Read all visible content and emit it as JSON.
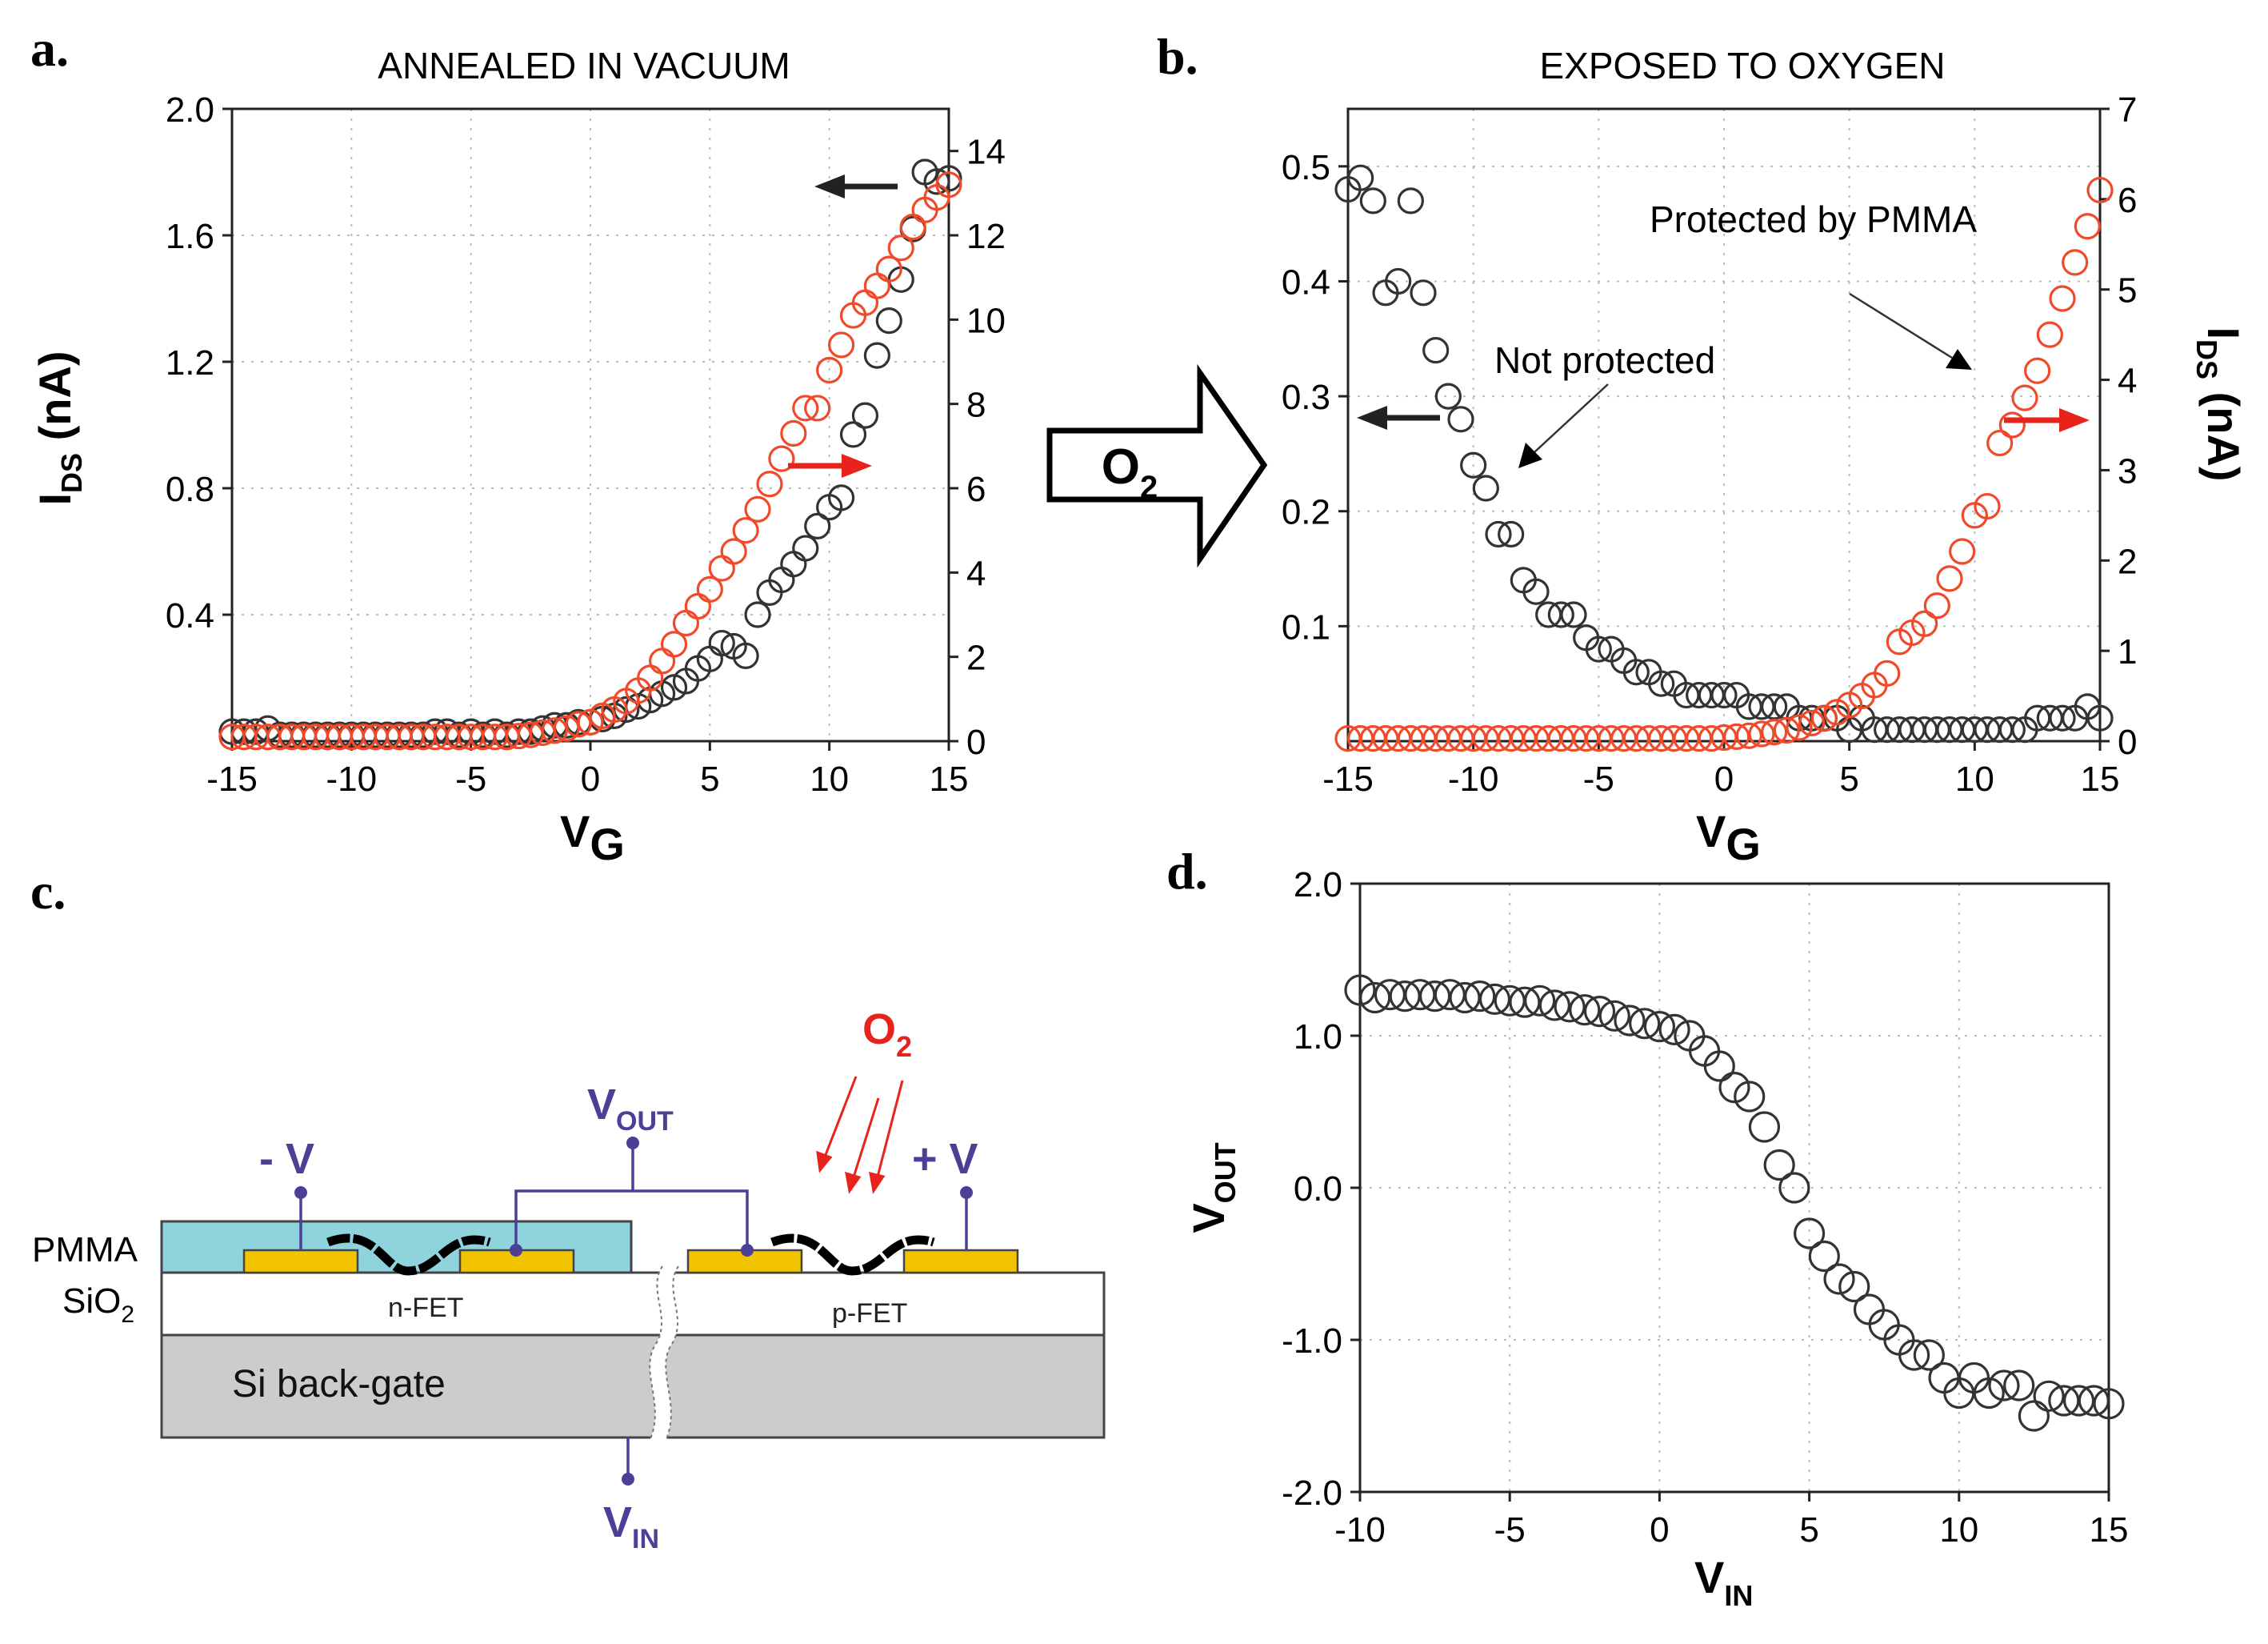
{
  "panels": {
    "a": {
      "label": "a.",
      "title": "ANNEALED IN VACUUM"
    },
    "b": {
      "label": "b.",
      "title": "EXPOSED TO OXYGEN"
    },
    "c": {
      "label": "c."
    },
    "d": {
      "label": "d."
    }
  },
  "arrow_label": {
    "main": "O",
    "sub": "2"
  },
  "chart_data": [
    {
      "panel": "a",
      "type": "scatter",
      "title": "ANNEALED IN VACUUM",
      "xlabel": {
        "main": "V",
        "sub": "G"
      },
      "ylabel": {
        "main": "I",
        "sub": "DS",
        "unit": " (nA)"
      },
      "xlim": [
        -15,
        15
      ],
      "ylim": [
        0,
        2.0
      ],
      "y2lim": [
        0,
        15
      ],
      "xticks": [
        -15,
        -10,
        -5,
        0,
        5,
        10,
        15
      ],
      "xtick_labels": [
        "-15",
        "-10",
        "-5",
        "0",
        "5",
        "10",
        "15"
      ],
      "yticks": [
        0.4,
        0.8,
        1.2,
        1.6,
        2.0
      ],
      "ytick_labels": [
        "0.4",
        "0.8",
        "1.2",
        "1.6",
        "2.0"
      ],
      "y2ticks": [
        0,
        2,
        4,
        6,
        8,
        10,
        12,
        14
      ],
      "y2tick_labels": [
        "0",
        "2",
        "4",
        "6",
        "8",
        "10",
        "12",
        "14"
      ],
      "grid": true,
      "series": [
        {
          "axis": "left",
          "color": "#333333",
          "x": [
            -15,
            -14.5,
            -14,
            -13.5,
            -13,
            -12.5,
            -12,
            -11.5,
            -11,
            -10.5,
            -10,
            -9.5,
            -9,
            -8.5,
            -8,
            -7.5,
            -7,
            -6.5,
            -6,
            -5.5,
            -5,
            -4.5,
            -4,
            -3.5,
            -3,
            -2.5,
            -2,
            -1.5,
            -1,
            -0.5,
            0,
            0.5,
            1,
            1.5,
            2,
            2.5,
            3,
            3.5,
            4,
            4.5,
            5,
            5.5,
            6,
            6.5,
            7,
            7.5,
            8,
            8.5,
            9,
            9.5,
            10,
            10.5,
            11,
            11.5,
            12,
            12.5,
            13,
            13.5,
            14,
            14.5,
            15
          ],
          "y": [
            0.03,
            0.03,
            0.03,
            0.04,
            0.02,
            0.02,
            0.02,
            0.02,
            0.02,
            0.02,
            0.02,
            0.02,
            0.02,
            0.02,
            0.02,
            0.02,
            0.02,
            0.03,
            0.03,
            0.02,
            0.03,
            0.02,
            0.03,
            0.02,
            0.03,
            0.03,
            0.04,
            0.05,
            0.05,
            0.06,
            0.06,
            0.07,
            0.08,
            0.1,
            0.11,
            0.13,
            0.15,
            0.17,
            0.19,
            0.23,
            0.26,
            0.31,
            0.3,
            0.27,
            0.4,
            0.47,
            0.51,
            0.56,
            0.61,
            0.68,
            0.74,
            0.77,
            0.97,
            1.03,
            1.22,
            1.33,
            1.46,
            1.62,
            1.8,
            1.77,
            1.78
          ]
        },
        {
          "axis": "right",
          "color": "#f04a2a",
          "x": [
            -15,
            -14.5,
            -14,
            -13.5,
            -13,
            -12.5,
            -12,
            -11.5,
            -11,
            -10.5,
            -10,
            -9.5,
            -9,
            -8.5,
            -8,
            -7.5,
            -7,
            -6.5,
            -6,
            -5.5,
            -5,
            -4.5,
            -4,
            -3.5,
            -3,
            -2.5,
            -2,
            -1.5,
            -1,
            -0.5,
            0,
            0.5,
            1,
            1.5,
            2,
            2.5,
            3,
            3.5,
            4,
            4.5,
            5,
            5.5,
            6,
            6.5,
            7,
            7.5,
            8,
            8.5,
            9,
            9.5,
            10,
            10.5,
            11,
            11.5,
            12,
            12.5,
            13,
            13.5,
            14,
            14.5,
            15
          ],
          "y": [
            0.1,
            0.1,
            0.1,
            0.1,
            0.1,
            0.1,
            0.1,
            0.1,
            0.1,
            0.1,
            0.1,
            0.1,
            0.1,
            0.1,
            0.1,
            0.1,
            0.1,
            0.1,
            0.1,
            0.1,
            0.1,
            0.1,
            0.1,
            0.1,
            0.12,
            0.15,
            0.2,
            0.25,
            0.3,
            0.4,
            0.45,
            0.6,
            0.75,
            0.95,
            1.2,
            1.5,
            1.9,
            2.3,
            2.8,
            3.2,
            3.6,
            4.1,
            4.5,
            5.0,
            5.5,
            6.1,
            6.7,
            7.3,
            7.9,
            7.9,
            8.8,
            9.4,
            10.1,
            10.4,
            10.8,
            11.2,
            11.7,
            12.2,
            12.6,
            12.9,
            13.2
          ]
        }
      ],
      "annotations": [
        {
          "type": "arrow",
          "direction": "left",
          "color": "#222222",
          "series_axis": "left"
        },
        {
          "type": "arrow",
          "direction": "right",
          "color": "#e8231c",
          "series_axis": "right"
        }
      ]
    },
    {
      "panel": "b",
      "type": "scatter",
      "title": "EXPOSED TO OXYGEN",
      "xlabel": {
        "main": "V",
        "sub": "G"
      },
      "ylabel": {
        "main": "I",
        "sub": "DS",
        "unit": " (nA)"
      },
      "xlim": [
        -15,
        15
      ],
      "ylim": [
        0,
        0.55
      ],
      "y2lim": [
        0,
        7
      ],
      "xticks": [
        -15,
        -10,
        -5,
        0,
        5,
        10,
        15
      ],
      "xtick_labels": [
        "-15",
        "-10",
        "-5",
        "0",
        "5",
        "10",
        "15"
      ],
      "yticks": [
        0.1,
        0.2,
        0.3,
        0.4,
        0.5
      ],
      "ytick_labels": [
        "0.1",
        "0.2",
        "0.3",
        "0.4",
        "0.5"
      ],
      "y2ticks": [
        0,
        1,
        2,
        3,
        4,
        5,
        6,
        7
      ],
      "y2tick_labels": [
        "0",
        "1",
        "2",
        "3",
        "4",
        "5",
        "6",
        "7"
      ],
      "grid": true,
      "series": [
        {
          "axis": "left",
          "color": "#333333",
          "x": [
            -15,
            -14.5,
            -14,
            -13.5,
            -13,
            -12.5,
            -12,
            -11.5,
            -11,
            -10.5,
            -10,
            -9.5,
            -9,
            -8.5,
            -8,
            -7.5,
            -7,
            -6.5,
            -6,
            -5.5,
            -5,
            -4.5,
            -4,
            -3.5,
            -3,
            -2.5,
            -2,
            -1.5,
            -1,
            -0.5,
            0,
            0.5,
            1,
            1.5,
            2,
            2.5,
            3,
            3.5,
            4,
            4.5,
            5,
            5.5,
            6,
            6.5,
            7,
            7.5,
            8,
            8.5,
            9,
            9.5,
            10,
            10.5,
            11,
            11.5,
            12,
            12.5,
            13,
            13.5,
            14,
            14.5,
            15
          ],
          "y": [
            0.48,
            0.49,
            0.47,
            0.39,
            0.4,
            0.47,
            0.39,
            0.34,
            0.3,
            0.28,
            0.24,
            0.22,
            0.18,
            0.18,
            0.14,
            0.13,
            0.11,
            0.11,
            0.11,
            0.09,
            0.08,
            0.08,
            0.07,
            0.06,
            0.06,
            0.05,
            0.05,
            0.04,
            0.04,
            0.04,
            0.04,
            0.04,
            0.03,
            0.03,
            0.03,
            0.03,
            0.02,
            0.02,
            0.02,
            0.02,
            0.01,
            0.02,
            0.01,
            0.01,
            0.01,
            0.01,
            0.01,
            0.01,
            0.01,
            0.01,
            0.01,
            0.01,
            0.01,
            0.01,
            0.01,
            0.02,
            0.02,
            0.02,
            0.02,
            0.03,
            0.02
          ]
        },
        {
          "axis": "right",
          "color": "#f04a2a",
          "x": [
            -15,
            -14.5,
            -14,
            -13.5,
            -13,
            -12.5,
            -12,
            -11.5,
            -11,
            -10.5,
            -10,
            -9.5,
            -9,
            -8.5,
            -8,
            -7.5,
            -7,
            -6.5,
            -6,
            -5.5,
            -5,
            -4.5,
            -4,
            -3.5,
            -3,
            -2.5,
            -2,
            -1.5,
            -1,
            -0.5,
            0,
            0.5,
            1,
            1.5,
            2,
            2.5,
            3,
            3.5,
            4,
            4.5,
            5,
            5.5,
            6,
            6.5,
            7,
            7.5,
            8,
            8.5,
            9,
            9.5,
            10,
            10.5,
            11,
            11.5,
            12,
            12.5,
            13,
            13.5,
            14,
            14.5,
            15
          ],
          "y": [
            0.03,
            0.03,
            0.03,
            0.03,
            0.03,
            0.03,
            0.03,
            0.03,
            0.03,
            0.03,
            0.03,
            0.03,
            0.03,
            0.03,
            0.03,
            0.03,
            0.03,
            0.03,
            0.03,
            0.03,
            0.03,
            0.03,
            0.03,
            0.03,
            0.03,
            0.03,
            0.03,
            0.03,
            0.03,
            0.03,
            0.04,
            0.05,
            0.06,
            0.08,
            0.1,
            0.12,
            0.15,
            0.2,
            0.25,
            0.32,
            0.4,
            0.5,
            0.62,
            0.75,
            1.1,
            1.2,
            1.3,
            1.5,
            1.8,
            2.1,
            2.5,
            2.6,
            3.3,
            3.5,
            3.8,
            4.1,
            4.5,
            4.9,
            5.3,
            5.7,
            6.1
          ]
        }
      ],
      "annotations": [
        {
          "type": "text",
          "text": "Not protected"
        },
        {
          "type": "text",
          "text": "Protected by PMMA"
        },
        {
          "type": "arrow",
          "direction": "left",
          "color": "#222222",
          "series_axis": "left"
        },
        {
          "type": "arrow",
          "direction": "right",
          "color": "#e8231c",
          "series_axis": "right"
        }
      ]
    },
    {
      "panel": "d",
      "type": "scatter",
      "xlabel": {
        "main": "V",
        "sub": "IN"
      },
      "ylabel": {
        "main": "V",
        "sub": "OUT"
      },
      "xlim": [
        -10,
        15
      ],
      "ylim": [
        -2.0,
        2.0
      ],
      "xticks": [
        -10,
        -5,
        0,
        5,
        10,
        15
      ],
      "xtick_labels": [
        "-10",
        "-5",
        "0",
        "5",
        "10",
        "15"
      ],
      "yticks": [
        -2.0,
        -1.0,
        0.0,
        1.0,
        2.0
      ],
      "ytick_labels": [
        "-2.0",
        "-1.0",
        "0.0",
        "1.0",
        "2.0"
      ],
      "grid": true,
      "series": [
        {
          "axis": "left",
          "color": "#333333",
          "x": [
            -10,
            -9.5,
            -9,
            -8.5,
            -8,
            -7.5,
            -7,
            -6.5,
            -6,
            -5.5,
            -5,
            -4.5,
            -4,
            -3.5,
            -3,
            -2.5,
            -2,
            -1.5,
            -1,
            -0.5,
            0,
            0.5,
            1,
            1.5,
            2,
            2.5,
            3,
            3.5,
            4,
            4.5,
            5,
            5.5,
            6,
            6.5,
            7,
            7.5,
            8,
            8.5,
            9,
            9.5,
            10,
            10.5,
            11,
            11.5,
            12,
            12.5,
            13,
            13.5,
            14,
            14.5,
            15
          ],
          "y": [
            1.3,
            1.25,
            1.27,
            1.26,
            1.27,
            1.26,
            1.27,
            1.25,
            1.26,
            1.24,
            1.23,
            1.22,
            1.23,
            1.2,
            1.19,
            1.17,
            1.16,
            1.13,
            1.1,
            1.08,
            1.06,
            1.04,
            1.0,
            0.9,
            0.8,
            0.66,
            0.6,
            0.4,
            0.15,
            0.0,
            -0.3,
            -0.45,
            -0.6,
            -0.65,
            -0.8,
            -0.9,
            -1.0,
            -1.1,
            -1.1,
            -1.25,
            -1.35,
            -1.25,
            -1.35,
            -1.3,
            -1.3,
            -1.5,
            -1.37,
            -1.4,
            -1.4,
            -1.4,
            -1.42
          ]
        }
      ]
    }
  ],
  "diagram": {
    "labels": {
      "pmma": "PMMA",
      "sio2": {
        "main": "SiO",
        "sub": "2"
      },
      "si_gate": "Si back-gate",
      "nfet": "n-FET",
      "pfet": "p-FET",
      "minus_v": "- V",
      "plus_v": "+ V",
      "vout": {
        "main": "V",
        "sub": "OUT"
      },
      "vin": {
        "main": "V",
        "sub": "IN"
      },
      "o2": {
        "main": "O",
        "sub": "2"
      }
    },
    "colors": {
      "pmma": "#8fd3dc",
      "contacts": "#f2c400",
      "substrate": "#cccccc",
      "wires": "#4b3f96",
      "oxygen": "#e8231c"
    }
  }
}
